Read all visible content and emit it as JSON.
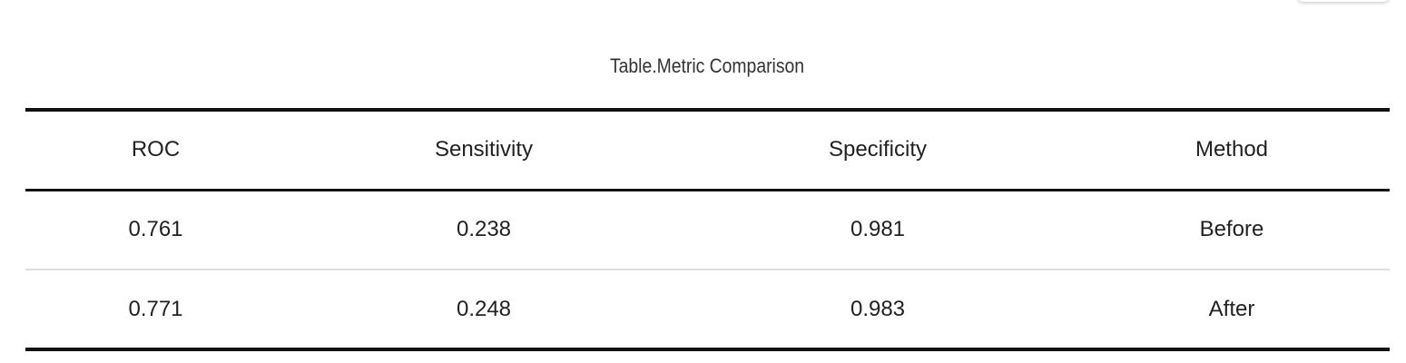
{
  "caption": "Table.Metric Comparison",
  "table": {
    "headers": [
      "ROC",
      "Sensitivity",
      "Specificity",
      "Method"
    ],
    "rows": [
      [
        "0.761",
        "0.238",
        "0.981",
        "Before"
      ],
      [
        "0.771",
        "0.248",
        "0.983",
        "After"
      ]
    ]
  }
}
